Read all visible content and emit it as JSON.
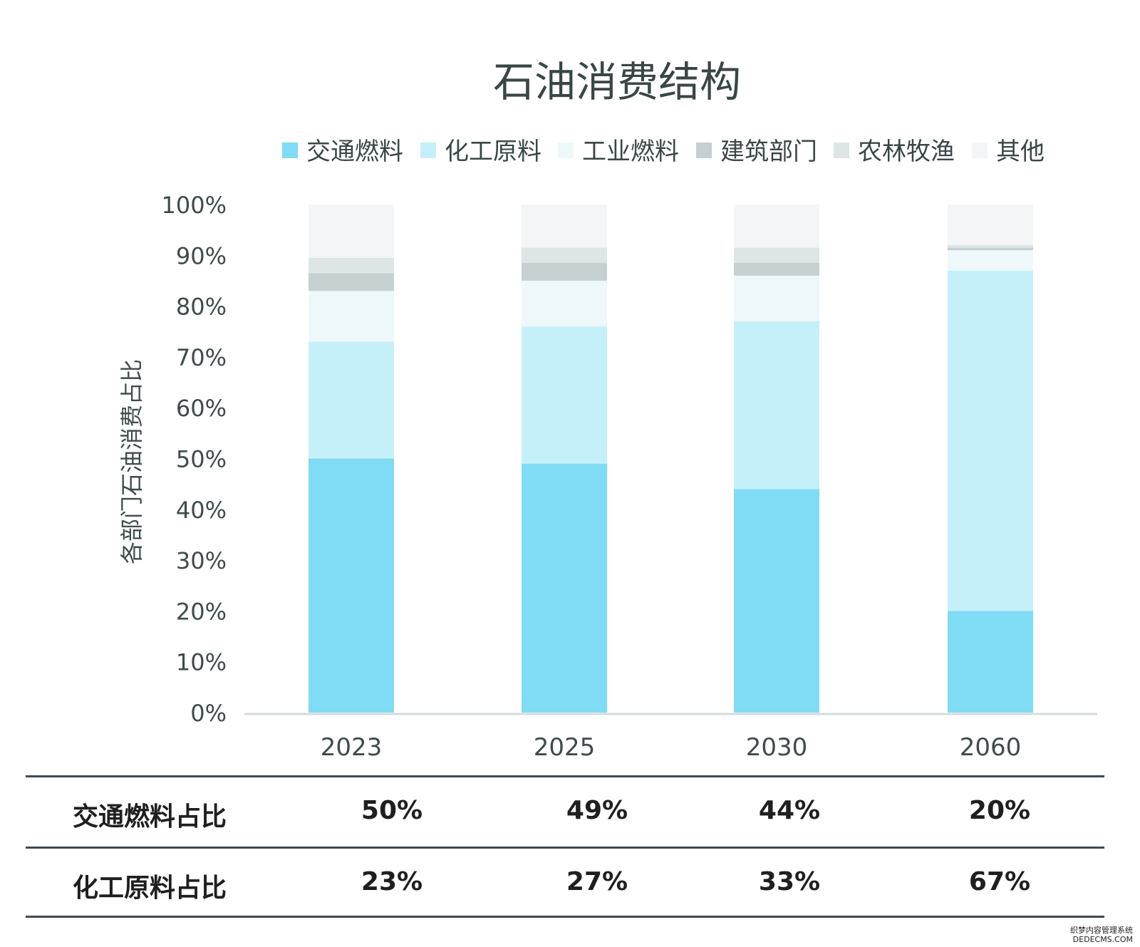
{
  "chart_data": {
    "type": "bar",
    "stacked": true,
    "title": "石油消费结构",
    "ylabel": "各部门石油消费占比",
    "xlabel": "",
    "ylim": [
      0,
      100
    ],
    "yticks": [
      "0%",
      "10%",
      "20%",
      "30%",
      "40%",
      "50%",
      "60%",
      "70%",
      "80%",
      "90%",
      "100%"
    ],
    "categories": [
      "2023",
      "2025",
      "2030",
      "2060"
    ],
    "legend_position": "top",
    "grid": false,
    "series": [
      {
        "name": "交通燃料",
        "color": "#80dbf4",
        "values": [
          50,
          49,
          44,
          20
        ]
      },
      {
        "name": "化工原料",
        "color": "#c6f0f9",
        "values": [
          23,
          27,
          33,
          67
        ]
      },
      {
        "name": "工业燃料",
        "color": "#eef8fb",
        "values": [
          10,
          9,
          9,
          4
        ]
      },
      {
        "name": "建筑部门",
        "color": "#c5d0d0",
        "values": [
          3.5,
          3.5,
          2.5,
          0.5
        ]
      },
      {
        "name": "农林牧渔",
        "color": "#dde5e5",
        "values": [
          3,
          3,
          3,
          0.5
        ]
      },
      {
        "name": "其他",
        "color": "#f3f5f6",
        "values": [
          10.5,
          8.5,
          8.5,
          8
        ]
      }
    ]
  },
  "table": {
    "rows": [
      {
        "label": "交通燃料占比",
        "values": [
          "50%",
          "49%",
          "44%",
          "20%"
        ]
      },
      {
        "label": "化工原料占比",
        "values": [
          "23%",
          "27%",
          "33%",
          "67%"
        ]
      }
    ]
  },
  "watermark": {
    "line1": "织梦内容管理系统",
    "line2": "DEDECMS.COM"
  }
}
